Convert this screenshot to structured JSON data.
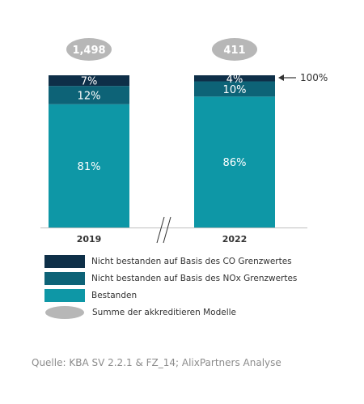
{
  "chart_data": {
    "type": "bar",
    "stacked": true,
    "categories": [
      "2019",
      "2022"
    ],
    "series": [
      {
        "name": "Bestanden",
        "values": [
          81,
          86
        ],
        "labels": [
          "81%",
          "86%"
        ],
        "color": "#0e97a6"
      },
      {
        "name": "Nicht bestanden auf Basis des NOx Grenzwertes",
        "values": [
          12,
          10
        ],
        "labels": [
          "12%",
          "10%"
        ],
        "color": "#0d6377"
      },
      {
        "name": "Nicht bestanden auf Basis des CO Grenzwertes",
        "values": [
          7,
          4
        ],
        "labels": [
          "7%",
          "4%"
        ],
        "color": "#0e2f48"
      }
    ],
    "totals": [
      {
        "category": "2019",
        "label": "1,498"
      },
      {
        "category": "2022",
        "label": "411"
      }
    ],
    "total_bubble_legend": "Summe der akkreditieren Modelle",
    "total_bubble_color": "#b7b7b7",
    "annotation": "100%",
    "axis_break": true,
    "ylim": [
      0,
      100
    ],
    "grid": false,
    "legend_position": "bottom-left"
  },
  "source": "Quelle: KBA SV 2.2.1 & FZ_14; AlixPartners Analyse"
}
